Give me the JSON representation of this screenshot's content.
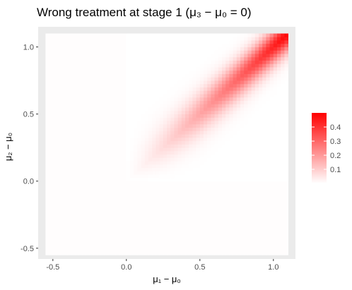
{
  "chart_data": {
    "type": "heatmap",
    "title": "Wrong treatment at stage 1 (μ₃ − μ₀ = 0)",
    "xlabel": "μ₁ − μ₀",
    "ylabel": "μ₂ − μ₀",
    "xlim": [
      -0.6,
      1.15
    ],
    "ylim": [
      -0.58,
      1.15
    ],
    "x_ticks": [
      -0.5,
      0.0,
      0.5,
      1.0
    ],
    "x_tick_labels": [
      "-0.5",
      "0.0",
      "0.5",
      "1.0"
    ],
    "y_ticks": [
      -0.5,
      0.0,
      0.5,
      1.0
    ],
    "y_tick_labels": [
      "-0.5",
      "0.0",
      "0.5",
      "1.0"
    ],
    "tile_x_range": [
      -0.55,
      1.1
    ],
    "tile_y_range": [
      -0.55,
      1.1
    ],
    "tile_step": 0.025,
    "value_range": [
      0,
      0.5
    ],
    "color_low": "#ffffff",
    "color_high": "#ff0000",
    "panel_background": "#ebebeb",
    "grid": true,
    "legend": {
      "position": "right",
      "breaks": [
        0.1,
        0.2,
        0.3,
        0.4
      ],
      "labels": [
        "0.1",
        "0.2",
        "0.3",
        "0.4"
      ]
    }
  }
}
